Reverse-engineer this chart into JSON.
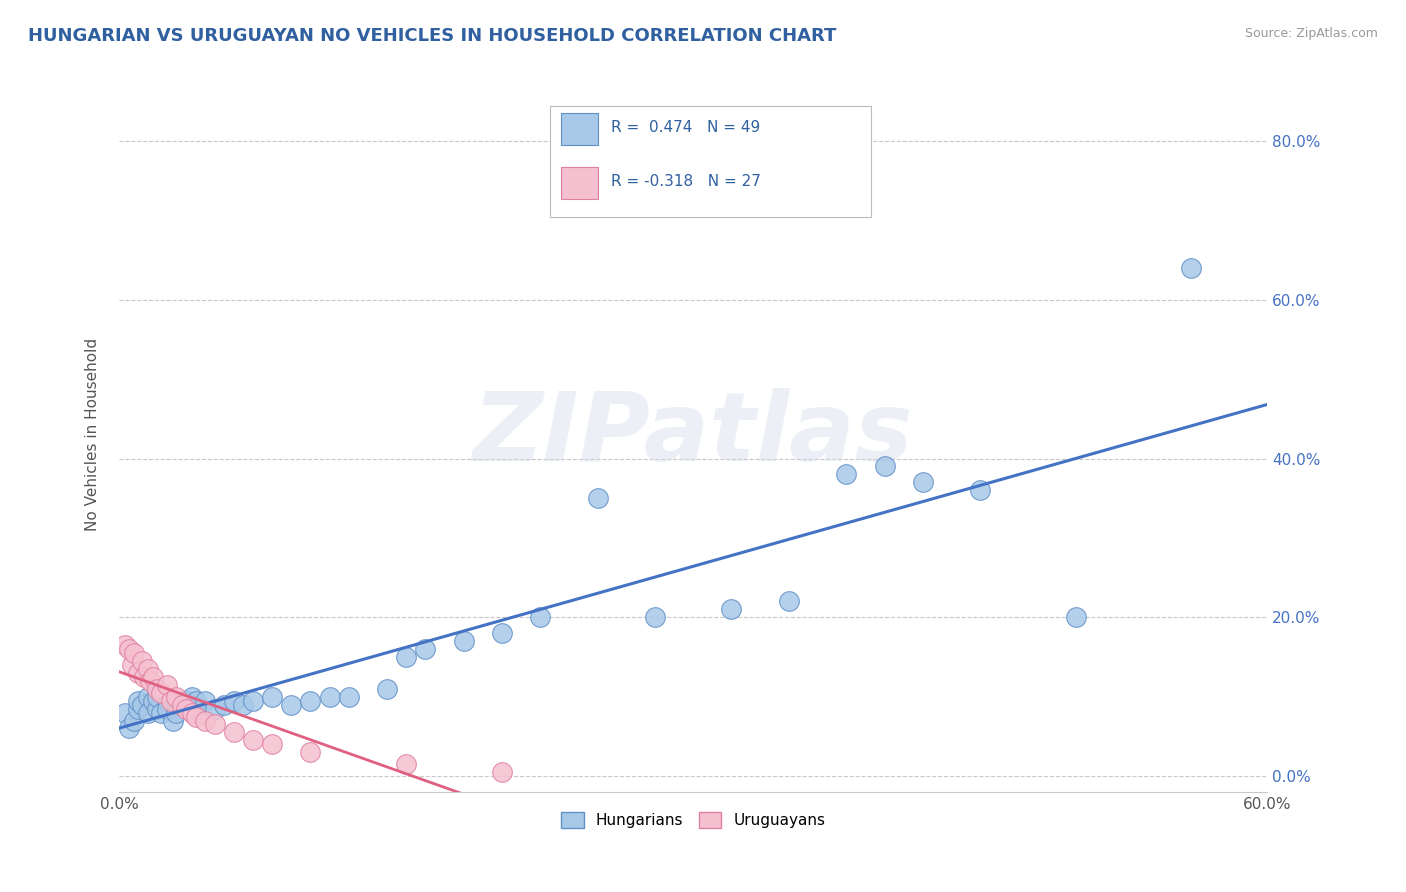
{
  "title": "HUNGARIAN VS URUGUAYAN NO VEHICLES IN HOUSEHOLD CORRELATION CHART",
  "source": "Source: ZipAtlas.com",
  "ylabel": "No Vehicles in Household",
  "xlim": [
    0.0,
    0.6
  ],
  "ylim": [
    -0.02,
    0.88
  ],
  "yticks": [
    0.0,
    0.2,
    0.4,
    0.6,
    0.8
  ],
  "ytick_labels": [
    "0.0%",
    "20.0%",
    "40.0%",
    "60.0%",
    "80.0%"
  ],
  "xtick_labels": [
    "0.0%",
    "",
    "",
    "",
    "",
    "",
    "60.0%"
  ],
  "hungarian_color": "#a8c8e8",
  "uruguayan_color": "#f5c0d0",
  "hungarian_edge_color": "#6090c8",
  "uruguayan_edge_color": "#e080a0",
  "hungarian_line_color": "#4472c4",
  "uruguayan_line_color": "#e06080",
  "title_color": "#3060a0",
  "source_color": "#999999",
  "background_color": "#ffffff",
  "grid_color": "#c8c8c8",
  "legend_text_color": "#3060a0",
  "watermark_text": "ZIPatlas",
  "hungarian_x": [
    0.003,
    0.005,
    0.008,
    0.01,
    0.01,
    0.012,
    0.015,
    0.015,
    0.018,
    0.02,
    0.02,
    0.022,
    0.025,
    0.025,
    0.028,
    0.03,
    0.03,
    0.035,
    0.035,
    0.038,
    0.04,
    0.04,
    0.045,
    0.05,
    0.055,
    0.06,
    0.065,
    0.07,
    0.08,
    0.09,
    0.1,
    0.11,
    0.12,
    0.14,
    0.15,
    0.16,
    0.18,
    0.2,
    0.22,
    0.25,
    0.28,
    0.32,
    0.35,
    0.38,
    0.4,
    0.42,
    0.45,
    0.5,
    0.56
  ],
  "hungarian_y": [
    0.08,
    0.06,
    0.07,
    0.085,
    0.095,
    0.09,
    0.1,
    0.08,
    0.095,
    0.085,
    0.1,
    0.08,
    0.095,
    0.085,
    0.07,
    0.09,
    0.08,
    0.09,
    0.095,
    0.1,
    0.085,
    0.095,
    0.095,
    0.085,
    0.09,
    0.095,
    0.09,
    0.095,
    0.1,
    0.09,
    0.095,
    0.1,
    0.1,
    0.11,
    0.15,
    0.16,
    0.17,
    0.18,
    0.2,
    0.35,
    0.2,
    0.21,
    0.22,
    0.38,
    0.39,
    0.37,
    0.36,
    0.2,
    0.64
  ],
  "uruguayan_x": [
    0.003,
    0.005,
    0.007,
    0.008,
    0.01,
    0.012,
    0.013,
    0.015,
    0.016,
    0.018,
    0.02,
    0.022,
    0.025,
    0.027,
    0.03,
    0.033,
    0.035,
    0.038,
    0.04,
    0.045,
    0.05,
    0.06,
    0.07,
    0.08,
    0.1,
    0.15,
    0.2
  ],
  "uruguayan_y": [
    0.165,
    0.16,
    0.14,
    0.155,
    0.13,
    0.145,
    0.125,
    0.135,
    0.12,
    0.125,
    0.11,
    0.105,
    0.115,
    0.095,
    0.1,
    0.09,
    0.085,
    0.08,
    0.075,
    0.07,
    0.065,
    0.055,
    0.045,
    0.04,
    0.03,
    0.015,
    0.005
  ]
}
